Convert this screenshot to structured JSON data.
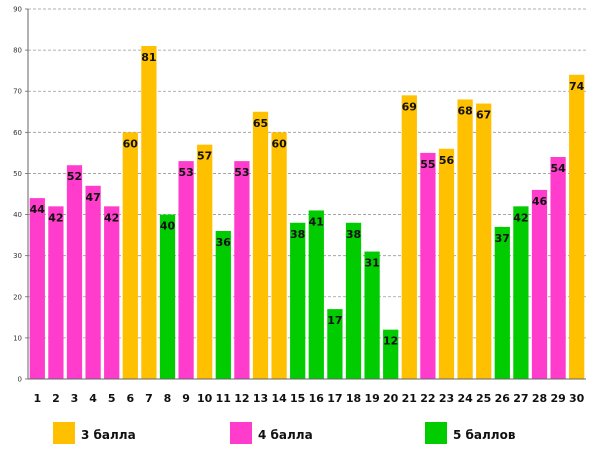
{
  "chart_data": {
    "type": "bar",
    "categories": [
      "1",
      "2",
      "3",
      "4",
      "5",
      "6",
      "7",
      "8",
      "9",
      "10",
      "11",
      "12",
      "13",
      "14",
      "15",
      "16",
      "17",
      "18",
      "19",
      "20",
      "21",
      "22",
      "23",
      "24",
      "25",
      "26",
      "27",
      "28",
      "29",
      "30"
    ],
    "values": [
      44,
      42,
      52,
      47,
      42,
      60,
      81,
      40,
      53,
      57,
      36,
      53,
      65,
      60,
      38,
      41,
      17,
      38,
      31,
      12,
      69,
      55,
      56,
      68,
      67,
      37,
      42,
      46,
      54,
      74
    ],
    "groups": [
      "4",
      "4",
      "4",
      "4",
      "4",
      "3",
      "3",
      "5",
      "4",
      "3",
      "5",
      "4",
      "3",
      "3",
      "5",
      "5",
      "5",
      "5",
      "5",
      "5",
      "3",
      "4",
      "3",
      "3",
      "3",
      "5",
      "5",
      "4",
      "4",
      "3"
    ],
    "ylim": [
      0,
      90
    ],
    "yticks": [
      "0",
      "10",
      "20",
      "30",
      "40",
      "50",
      "60",
      "70",
      "80",
      "90"
    ],
    "grid": true,
    "legend_position": "bottom",
    "legend": [
      {
        "group": "3",
        "label": "3 балла",
        "color": "#FFC000"
      },
      {
        "group": "4",
        "label": "4 балла",
        "color": "#FF3CCC"
      },
      {
        "group": "5",
        "label": "5 баллов",
        "color": "#00CC00"
      }
    ]
  }
}
